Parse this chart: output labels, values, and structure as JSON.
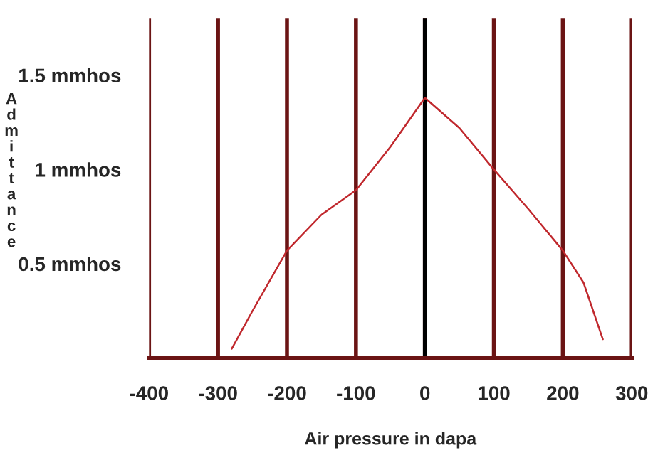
{
  "chart_data": {
    "type": "line",
    "xlabel": "Air pressure in dapa",
    "ylabel": "Admittance",
    "x": [
      -280,
      -250,
      -200,
      -150,
      -100,
      -50,
      0,
      50,
      100,
      150,
      200,
      230,
      258
    ],
    "series": [
      {
        "color": "#c0282d",
        "values": [
          0.05,
          0.25,
          0.57,
          0.76,
          0.89,
          1.12,
          1.38,
          1.22,
          1.0,
          0.79,
          0.57,
          0.4,
          0.1
        ]
      }
    ],
    "xlim": [
      -400,
      300
    ],
    "xticks": [
      -400,
      -300,
      -200,
      -100,
      0,
      100,
      200,
      300
    ],
    "ylim": [
      0,
      1.8
    ],
    "yticks": [
      {
        "value": 0.5,
        "label": "0.5 mmhos"
      },
      {
        "value": 1,
        "label": "1 mmhos"
      },
      {
        "value": 1.5,
        "label": "1.5 mmhos"
      }
    ],
    "grid": "x",
    "ref_lines": [
      {
        "axis": "x",
        "value": 0,
        "color": "#000000"
      }
    ],
    "line_style": "solid",
    "marker": "none"
  }
}
